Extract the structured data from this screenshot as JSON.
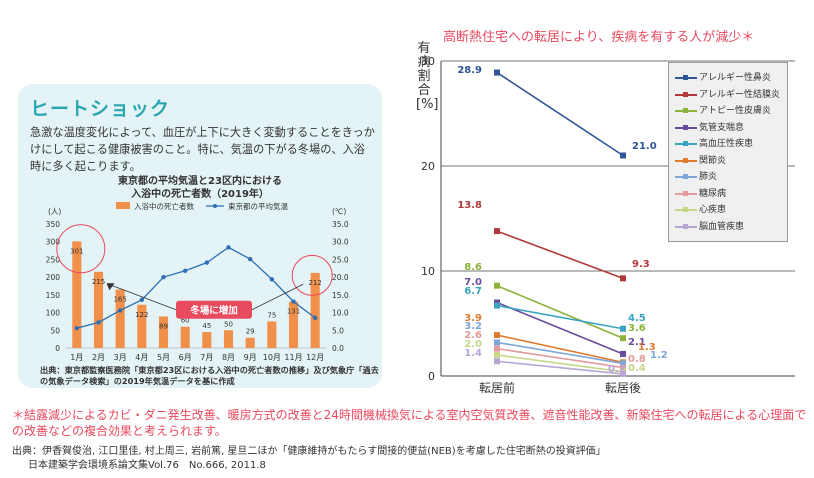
{
  "heat_shock": {
    "title": "ヒートショック",
    "description": "急激な温度変化によって、血圧が上下に大きく変動することをきっかけにして起こる健康被害のこと。特に、気温の下がる冬場の、入浴時に多く起こります。",
    "callout": "冬場に増加",
    "source": "出典：東京都監察医務院「東京都23区における入浴中の死亡者数の推移」及び気象庁「過去の気象データ検索」の2019年気温データを基に作成"
  },
  "right_title": "高断熱住宅への転居により、疾病を有する人が減少＊",
  "footnote": "＊結露減少によるカビ・ダニ発生改善、暖房方式の改善と24時間機械換気による室内空気質改善、遮音性能改善、新築住宅への転居による心理面での改善などの複合効果と考えられます。",
  "source": {
    "line1": "出典：伊香賀俊治, 江口里佳, 村上周三, 岩前篤, 星旦二ほか「健康維持がもたらす間接的便益(NEB)を考慮した住宅断熱の投資評価」",
    "line2": "日本建築学会環境系論文集Vol.76　No.666, 2011.8"
  },
  "colors": {
    "bar": "#f0904a",
    "temp_line": "#2f6fb5",
    "callout_bg": "#e84a5f",
    "circle": "#e84a5f",
    "accent_title": "#2aa6b3"
  },
  "chart_data": [
    {
      "type": "bar",
      "title": "東京都の平均気温と23区内における入浴中の死亡者数（2019年）",
      "categories": [
        "1月",
        "2月",
        "3月",
        "4月",
        "5月",
        "6月",
        "7月",
        "8月",
        "9月",
        "10月",
        "11月",
        "12月"
      ],
      "series": [
        {
          "name": "入浴中の死亡者数",
          "type": "bar",
          "axis": "left",
          "values": [
            301,
            215,
            165,
            122,
            89,
            60,
            45,
            50,
            29,
            75,
            131,
            212
          ]
        },
        {
          "name": "東京都の平均気温",
          "type": "line",
          "axis": "right",
          "values": [
            5.6,
            7.2,
            10.6,
            13.6,
            20.0,
            21.8,
            24.1,
            28.4,
            25.1,
            19.4,
            13.1,
            8.5
          ]
        }
      ],
      "ylabel_left": "(人)",
      "ylabel_right": "(℃)",
      "ylim_left": [
        0,
        350
      ],
      "ylim_right": [
        0,
        35
      ],
      "yticks_left": [
        "0",
        "50",
        "100",
        "150",
        "200",
        "250",
        "300",
        "350"
      ],
      "yticks_right": [
        "0.0",
        "5.0",
        "10.0",
        "15.0",
        "20.0",
        "25.0",
        "30.0",
        "35.0"
      ],
      "legend_position": "top"
    },
    {
      "type": "line",
      "title": "",
      "ylabel": "有病割合[%]",
      "categories": [
        "転居前",
        "転居後"
      ],
      "ylim": [
        0,
        30
      ],
      "yticks": [
        "0",
        "10",
        "20",
        "30"
      ],
      "grid": true,
      "legend_position": "right",
      "series": [
        {
          "name": "アレルギー性鼻炎",
          "values": [
            28.9,
            21.0
          ],
          "color": "#2f5597"
        },
        {
          "name": "アレルギー性結膜炎",
          "values": [
            13.8,
            9.3
          ],
          "color": "#b03a3a"
        },
        {
          "name": "アトピー性皮膚炎",
          "values": [
            8.6,
            3.6
          ],
          "color": "#8db33a"
        },
        {
          "name": "気管支喘息",
          "values": [
            7.0,
            2.1
          ],
          "color": "#6a4c9c"
        },
        {
          "name": "高血圧性疾患",
          "values": [
            6.7,
            4.5
          ],
          "color": "#3aa3c0"
        },
        {
          "name": "関節炎",
          "values": [
            3.9,
            1.3
          ],
          "color": "#e07a2e"
        },
        {
          "name": "肺炎",
          "values": [
            3.2,
            1.2
          ],
          "color": "#7fa6d9"
        },
        {
          "name": "糖尿病",
          "values": [
            2.6,
            0.8
          ],
          "color": "#e39b9b"
        },
        {
          "name": "心疾患",
          "values": [
            2.0,
            0.4
          ],
          "color": "#c5d88a"
        },
        {
          "name": "脳血管疾患",
          "values": [
            1.4,
            0.2
          ],
          "color": "#b7a6d4"
        }
      ],
      "labels_before": [
        "28.9",
        "13.8",
        "8.6",
        "7.0",
        "6.7",
        "3.9",
        "3.2",
        "2.6",
        "2.0",
        "1.4"
      ],
      "labels_after": [
        "21.0",
        "9.3",
        "4.5",
        "3.6",
        "2.1",
        "1.3",
        "1.2",
        "0.8",
        "0.4",
        "0.2"
      ]
    }
  ]
}
